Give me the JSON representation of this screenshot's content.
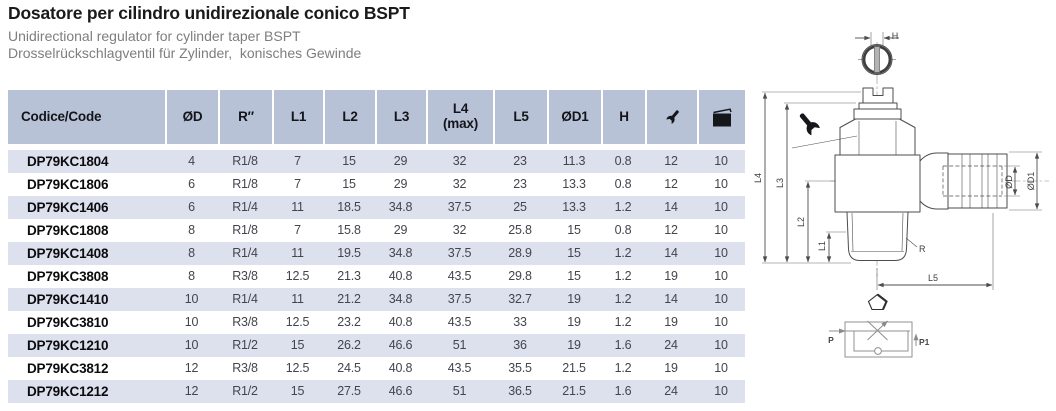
{
  "header": {
    "title": "Dosatore per cilindro unidirezionale conico BSPT",
    "subtitle_en": "Unidirectional regulator for cylinder taper BSPT",
    "subtitle_de": "Drosselrückschlagventil für Zylinder,  konisches Gewinde"
  },
  "colors": {
    "header_bg": "#b8c2d6",
    "row_alt": "#dde1ed",
    "title": "#1a1a1a",
    "subtitle": "#7e7e7e",
    "icon": "#15161a"
  },
  "table": {
    "columns": [
      {
        "label": "Codice/Code"
      },
      {
        "label": "ØD"
      },
      {
        "label": "R″"
      },
      {
        "label": "L1"
      },
      {
        "label": "L2"
      },
      {
        "label": "L3"
      },
      {
        "label": "L4\n(max)"
      },
      {
        "label": "L5"
      },
      {
        "label": "ØD1"
      },
      {
        "label": "H"
      },
      {
        "label": "",
        "icon": "wrench-icon"
      },
      {
        "label": "",
        "icon": "package-icon"
      }
    ],
    "rows": [
      [
        "DP79KC1804",
        "4",
        "R1/8",
        "7",
        "15",
        "29",
        "32",
        "23",
        "11.3",
        "0.8",
        "12",
        "10"
      ],
      [
        "DP79KC1806",
        "6",
        "R1/8",
        "7",
        "15",
        "29",
        "32",
        "23",
        "13.3",
        "0.8",
        "12",
        "10"
      ],
      [
        "DP79KC1406",
        "6",
        "R1/4",
        "11",
        "18.5",
        "34.8",
        "37.5",
        "25",
        "13.3",
        "1.2",
        "14",
        "10"
      ],
      [
        "DP79KC1808",
        "8",
        "R1/8",
        "7",
        "15.8",
        "29",
        "32",
        "25.8",
        "15",
        "0.8",
        "12",
        "10"
      ],
      [
        "DP79KC1408",
        "8",
        "R1/4",
        "11",
        "19.5",
        "34.8",
        "37.5",
        "28.9",
        "15",
        "1.2",
        "14",
        "10"
      ],
      [
        "DP79KC3808",
        "8",
        "R3/8",
        "12.5",
        "21.3",
        "40.8",
        "43.5",
        "29.8",
        "15",
        "1.2",
        "19",
        "10"
      ],
      [
        "DP79KC1410",
        "10",
        "R1/4",
        "11",
        "21.2",
        "34.8",
        "37.5",
        "32.7",
        "19",
        "1.2",
        "14",
        "10"
      ],
      [
        "DP79KC3810",
        "10",
        "R3/8",
        "12.5",
        "23.2",
        "40.8",
        "43.5",
        "33",
        "19",
        "1.2",
        "19",
        "10"
      ],
      [
        "DP79KC1210",
        "10",
        "R1/2",
        "15",
        "26.2",
        "46.6",
        "51",
        "36",
        "19",
        "1.6",
        "24",
        "10"
      ],
      [
        "DP79KC3812",
        "12",
        "R3/8",
        "12.5",
        "24.5",
        "40.8",
        "43.5",
        "35.5",
        "21.5",
        "1.2",
        "19",
        "10"
      ],
      [
        "DP79KC1212",
        "12",
        "R1/2",
        "15",
        "27.5",
        "46.6",
        "51",
        "36.5",
        "21.5",
        "1.6",
        "24",
        "10"
      ]
    ]
  },
  "diagram": {
    "labels": {
      "h": "H",
      "l1": "L1",
      "l2": "L2",
      "l3": "L3",
      "l4": "L4",
      "l5": "L5",
      "r": "R",
      "od": "ØD",
      "od1": "ØD1",
      "p": "P",
      "p1": "P1"
    }
  }
}
